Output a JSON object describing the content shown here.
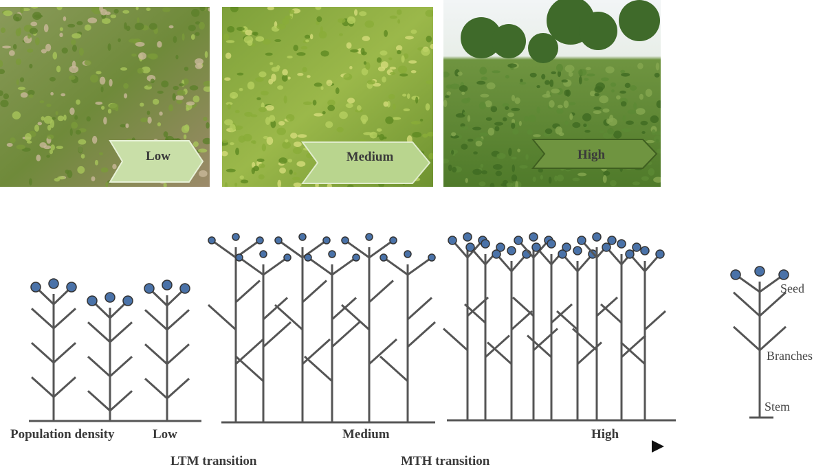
{
  "photos": [
    {
      "label": "Low"
    },
    {
      "label": "Medium"
    },
    {
      "label": "High"
    }
  ],
  "density_axis": {
    "title": "Population density",
    "levels": [
      "Low",
      "Medium",
      "High"
    ],
    "transitions": [
      "LTM transition",
      "MTH transition"
    ]
  },
  "legend": {
    "seed": "Seed",
    "branches": "Branches",
    "stem": "Stem"
  }
}
